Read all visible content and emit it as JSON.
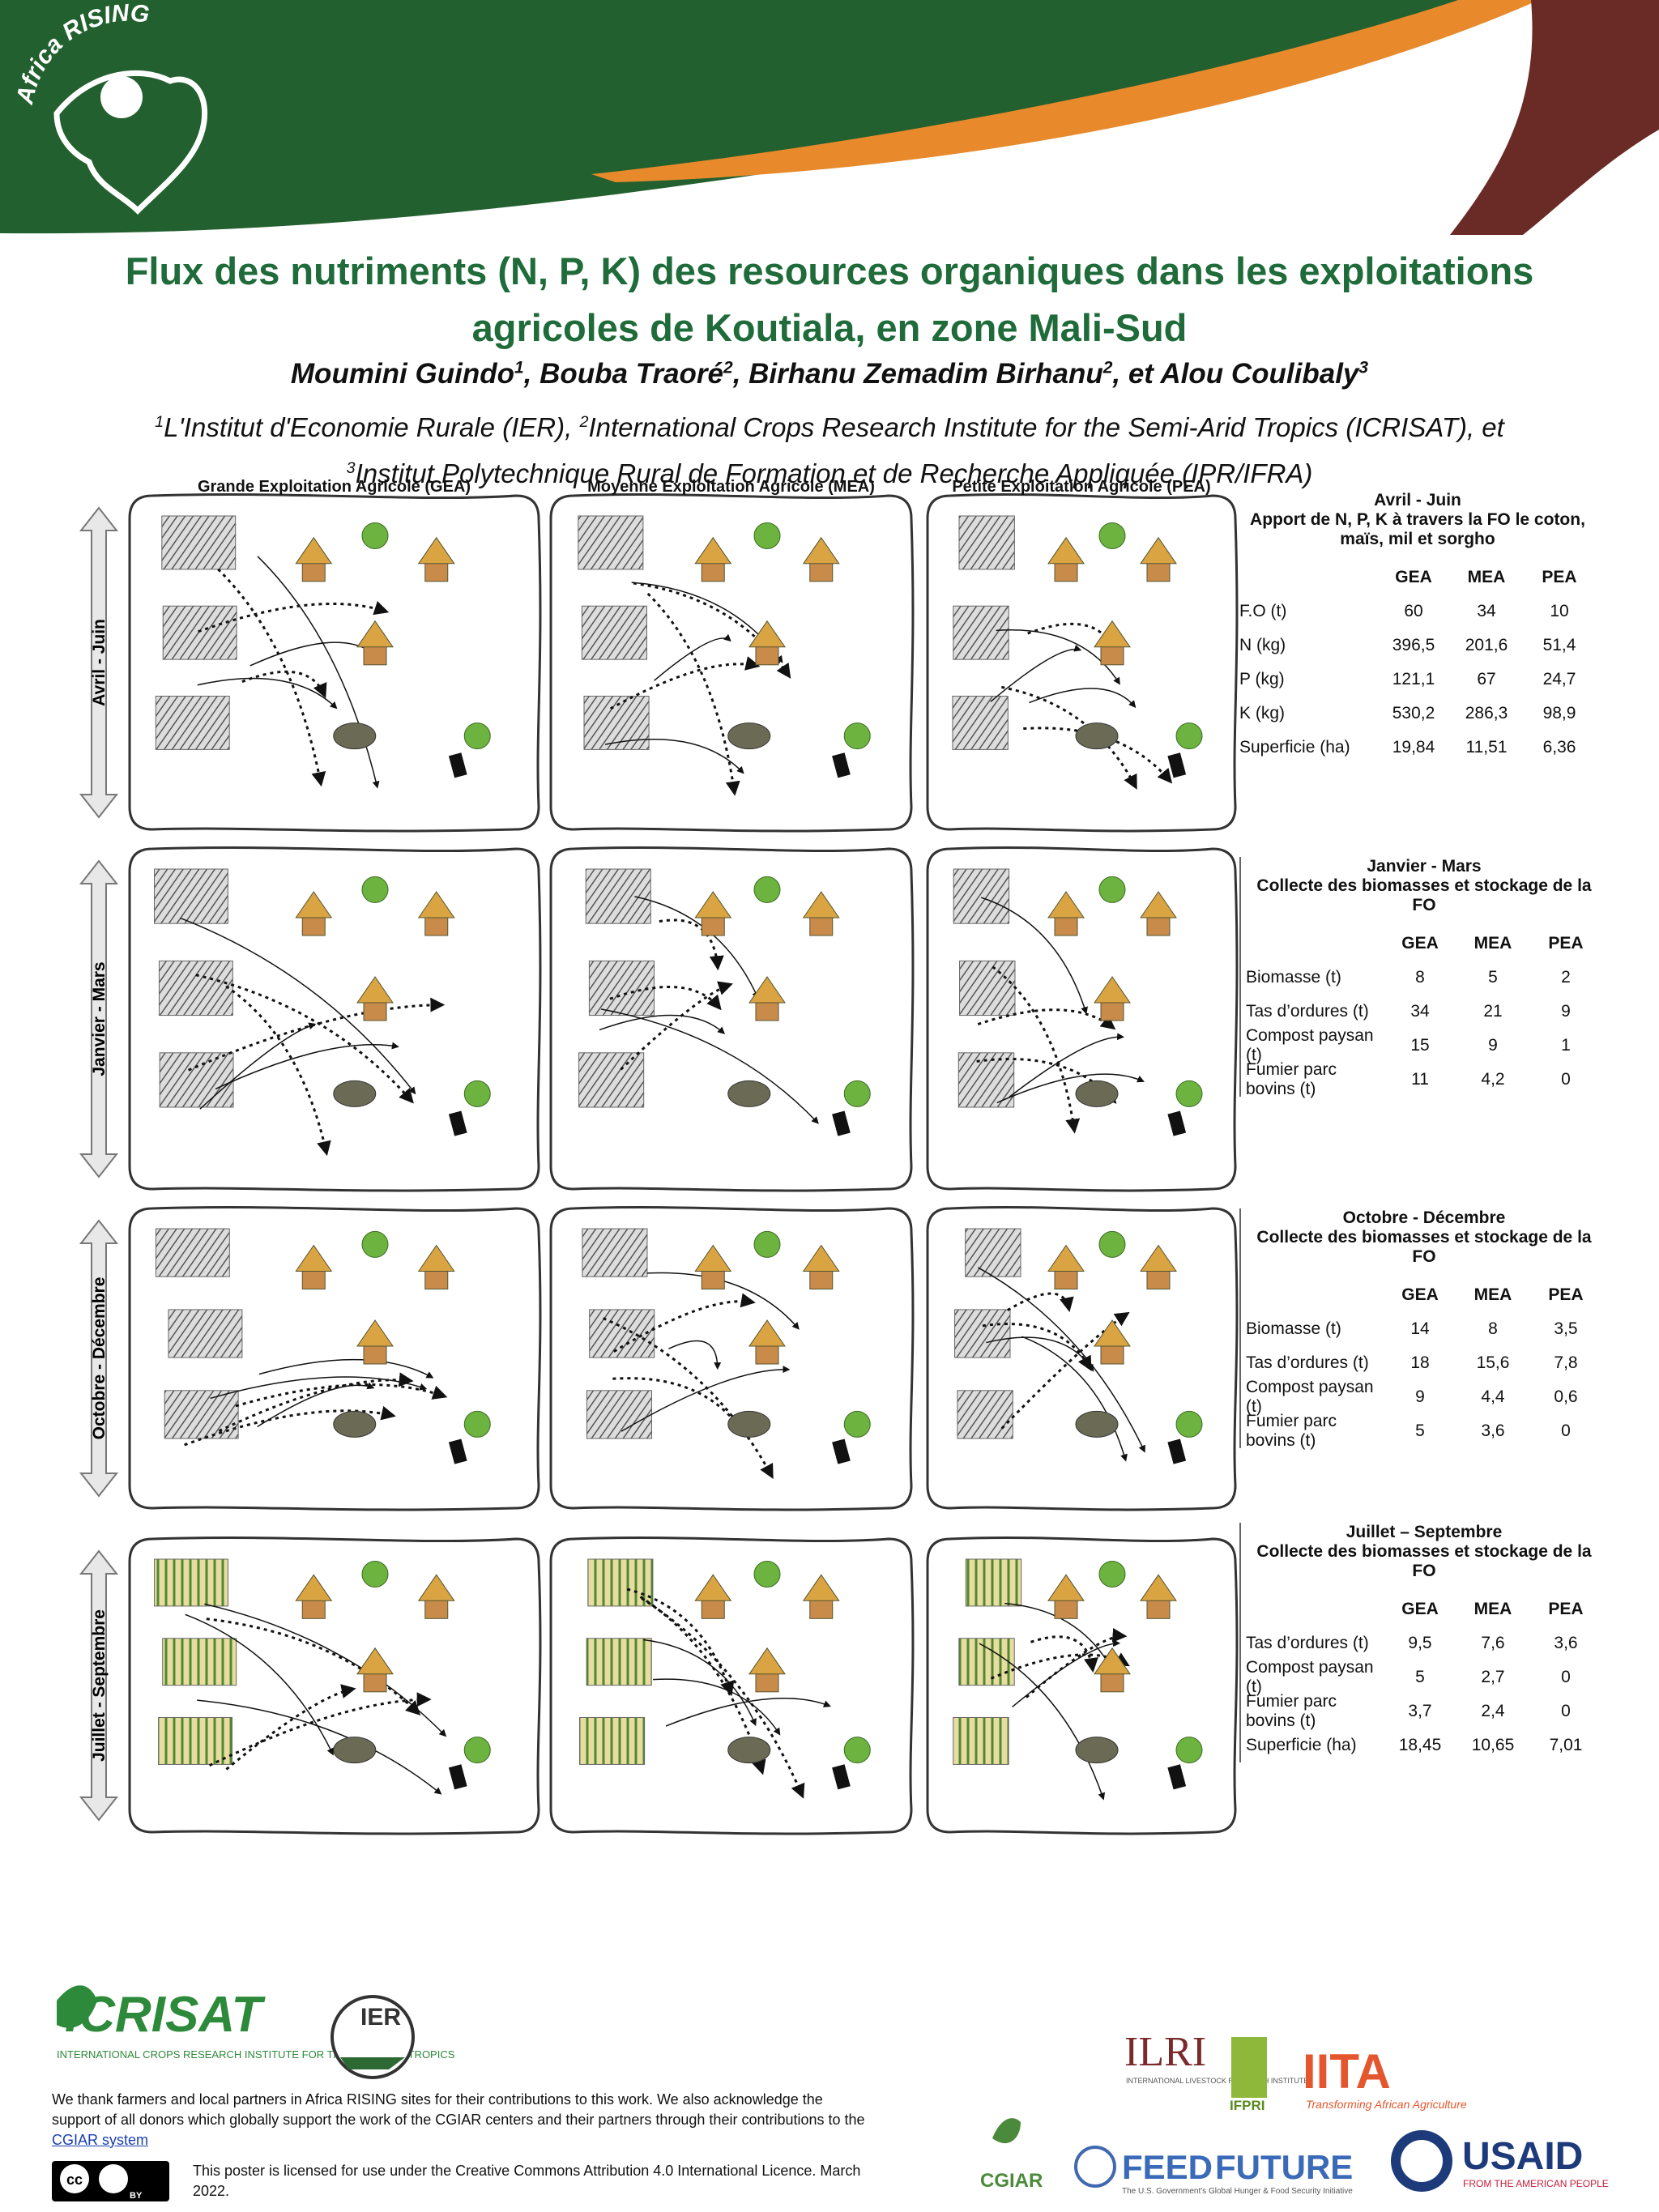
{
  "header": {
    "logo_text": "Africa RISING",
    "title": [
      "Flux des nutriments (N, P, K) des resources organiques dans les exploitations",
      "agricoles de Koutiala, en zone Mali-Sud"
    ],
    "authors": [
      {
        "text": "Moumini Guindo",
        "sup": "1"
      },
      {
        "text": ", Bouba Traoré",
        "sup": "2"
      },
      {
        "text": ", Birhanu Zemadim Birhanu",
        "sup": "2"
      },
      {
        "text": ", et Alou Coulibaly",
        "sup": "3"
      }
    ],
    "affiliations": [
      [
        {
          "sup": "1",
          "text": "L'Institut d'Economie Rurale (IER), "
        },
        {
          "sup": "2",
          "text": "International Crops Research Institute for the Semi-Arid Tropics (ICRISAT), et"
        }
      ],
      [
        {
          "sup": "3",
          "text": "Institut Polytechnique Rural de Formation et de Recherche Appliquée (IPR/IFRA)"
        }
      ]
    ]
  },
  "diagrams": {
    "columns": [
      "Grande Exploitation Agricole (GEA)",
      "Moyenne Exploitation Agricole (MEA)",
      "Petite Exploitation Agricole (PEA)"
    ],
    "periods": [
      "Avril - Juin",
      "Janvier - Mars",
      "Octobre - Décembre",
      "Juillet - Septembre"
    ]
  },
  "tables": [
    {
      "title": "Avril - Juin",
      "subtitle": "Apport de N, P, K à travers la FO le coton, maïs, mil et sorgho",
      "columns": [
        "GEA",
        "MEA",
        "PEA"
      ],
      "rows": [
        [
          "F.O (t)",
          "60",
          "34",
          "10"
        ],
        [
          "N (kg)",
          "396,5",
          "201,6",
          "51,4"
        ],
        [
          "P (kg)",
          "121,1",
          "67",
          "24,7"
        ],
        [
          "K (kg)",
          "530,2",
          "286,3",
          "98,9"
        ],
        [
          "Superficie (ha)",
          "19,84",
          "11,51",
          "6,36"
        ]
      ]
    },
    {
      "title": "Janvier - Mars",
      "subtitle": "Collecte des biomasses et stockage de la FO",
      "columns": [
        "GEA",
        "MEA",
        "PEA"
      ],
      "rows": [
        [
          "Biomasse (t)",
          "8",
          "5",
          "2"
        ],
        [
          "Tas d’ordures (t)",
          "34",
          "21",
          "9"
        ],
        [
          "Compost paysan (t)",
          "15",
          "9",
          "1"
        ],
        [
          "Fumier parc bovins (t)",
          "11",
          "4,2",
          "0"
        ]
      ]
    },
    {
      "title": "Octobre - Décembre",
      "subtitle": "Collecte des biomasses et stockage de la FO",
      "columns": [
        "GEA",
        "MEA",
        "PEA"
      ],
      "rows": [
        [
          "Biomasse (t)",
          "14",
          "8",
          "3,5"
        ],
        [
          "Tas d’ordures (t)",
          "18",
          "15,6",
          "7,8"
        ],
        [
          "Compost paysan (t)",
          "9",
          "4,4",
          "0,6"
        ],
        [
          "Fumier parc bovins (t)",
          "5",
          "3,6",
          "0"
        ]
      ]
    },
    {
      "title": "Juillet – Septembre",
      "subtitle": "Collecte des biomasses et stockage de la FO",
      "columns": [
        "GEA",
        "MEA",
        "PEA"
      ],
      "rows": [
        [
          "Tas d’ordures (t)",
          "9,5",
          "7,6",
          "3,6"
        ],
        [
          "Compost paysan (t)",
          "5",
          "2,7",
          "0"
        ],
        [
          "Fumier parc bovins (t)",
          "3,7",
          "2,4",
          "0"
        ],
        [
          "Superficie (ha)",
          "18,45",
          "10,65",
          "7,01"
        ]
      ]
    }
  ],
  "footer": {
    "icrisat_logo": "ICRISAT",
    "icrisat_name": "INTERNATIONAL CROPS RESEARCH INSTITUTE FOR THE SEMI-ARID TROPICS",
    "ier_logo": "IER",
    "ack_text": "We thank farmers and local partners in Africa RISING sites for their contributions to this work. We also acknowledge the support of all donors which globally support the work of the CGIAR centers and their partners through their contributions to the ",
    "ack_link": "CGIAR system",
    "license": "This poster is licensed for use under the Creative Commons Attribution 4.0 International Licence. March 2022.",
    "cc": "cc",
    "by": "BY",
    "ilri": "ILRI",
    "ilri_name": "INTERNATIONAL LIVESTOCK RESEARCH INSTITUTE",
    "ifpri": "IFPRI",
    "iita": "IITA",
    "iita_tagline": "Transforming African Agriculture",
    "cgiar": "CGIAR",
    "feed": "FEED",
    "future": "FUTURE",
    "ftf_tagline": "The U.S. Government's Global Hunger & Food Security Initiative",
    "usaid": "USAID",
    "usaid_tagline": "FROM THE AMERICAN PEOPLE"
  }
}
